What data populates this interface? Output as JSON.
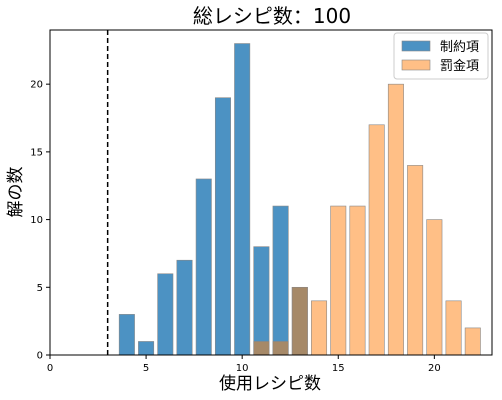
{
  "chart_data": {
    "type": "bar",
    "title": "総レシピ数：100",
    "xlabel": "使用レシピ数",
    "ylabel": "解の数",
    "xlim": [
      0,
      23
    ],
    "ylim": [
      0,
      24
    ],
    "xticks": [
      0,
      5,
      10,
      15,
      20
    ],
    "yticks": [
      0,
      5,
      10,
      15,
      20
    ],
    "grid": false,
    "legend_position": "top-right",
    "reference_line": {
      "x": 3,
      "style": "dashed",
      "color": "#000000"
    },
    "series": [
      {
        "name": "制約項",
        "color": "#1f77b4",
        "opacity": 0.8,
        "x": [
          4,
          5,
          6,
          7,
          8,
          9,
          10,
          11,
          12,
          13
        ],
        "values": [
          3,
          1,
          6,
          7,
          13,
          19,
          23,
          8,
          11,
          5
        ]
      },
      {
        "name": "罰金項",
        "color": "#ff7f0e",
        "opacity": 0.5,
        "x": [
          11,
          12,
          13,
          14,
          15,
          16,
          17,
          18,
          19,
          20,
          21,
          22
        ],
        "values": [
          1,
          1,
          5,
          4,
          11,
          11,
          17,
          20,
          14,
          10,
          4,
          2
        ]
      }
    ]
  }
}
